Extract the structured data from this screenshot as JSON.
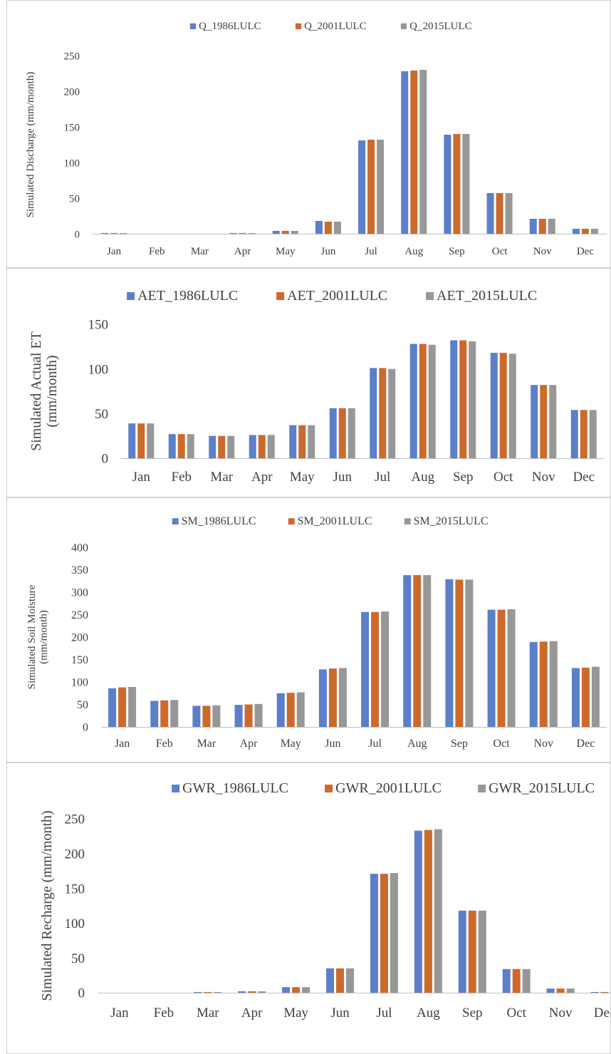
{
  "colors": {
    "series1": "#5b7fc9",
    "series2": "#cc6a2c",
    "series3": "#979797",
    "axis": "#bfbfbf"
  },
  "chart_data": [
    {
      "type": "bar",
      "categories": [
        "Jan",
        "Feb",
        "Mar",
        "Apr",
        "May",
        "Jun",
        "Jul",
        "Aug",
        "Sep",
        "Oct",
        "Nov",
        "Dec"
      ],
      "series": [
        {
          "name": "Q_1986LULC",
          "values": [
            1,
            0,
            0,
            1,
            4,
            18,
            131,
            228,
            139,
            57,
            21,
            7
          ]
        },
        {
          "name": "Q_2001LULC",
          "values": [
            1,
            0,
            0,
            1,
            4,
            17,
            132,
            229,
            140,
            57,
            21,
            7
          ]
        },
        {
          "name": "Q_2015LULC",
          "values": [
            1,
            0,
            0,
            1,
            4,
            17,
            132,
            230,
            140,
            57,
            21,
            7
          ]
        }
      ],
      "ylabel": "Simulated Discharge (mm/month)",
      "ylabel_lines": [
        "Simulated Discharge (mm/month)"
      ],
      "yticks": [
        "0",
        "50",
        "100",
        "150",
        "200",
        "250"
      ],
      "ylim": [
        0,
        250
      ],
      "legend": "top-center",
      "grid": false
    },
    {
      "type": "bar",
      "categories": [
        "Jan",
        "Feb",
        "Mar",
        "Apr",
        "May",
        "Jun",
        "Jul",
        "Aug",
        "Sep",
        "Oct",
        "Nov",
        "Dec"
      ],
      "series": [
        {
          "name": "AET_1986LULC",
          "values": [
            39,
            27,
            25,
            26,
            37,
            56,
            101,
            128,
            132,
            118,
            82,
            54
          ]
        },
        {
          "name": "AET_2001LULC",
          "values": [
            39,
            27,
            25,
            26,
            37,
            56,
            101,
            128,
            132,
            118,
            82,
            54
          ]
        },
        {
          "name": "AET_2015LULC",
          "values": [
            39,
            27,
            25,
            26,
            37,
            56,
            100,
            127,
            131,
            117,
            82,
            54
          ]
        }
      ],
      "ylabel": "Simulated Actual ET (mm/month)",
      "ylabel_lines": [
        "Simulated Actual ET",
        "(mm/month)"
      ],
      "yticks": [
        "0",
        "50",
        "100",
        "150"
      ],
      "ylim": [
        0,
        150
      ],
      "legend": "top-center",
      "grid": false
    },
    {
      "type": "bar",
      "categories": [
        "Jan",
        "Feb",
        "Mar",
        "Apr",
        "May",
        "Jun",
        "Jul",
        "Aug",
        "Sep",
        "Oct",
        "Nov",
        "Dec"
      ],
      "series": [
        {
          "name": "SM_1986LULC",
          "values": [
            86,
            58,
            47,
            49,
            75,
            128,
            256,
            338,
            329,
            261,
            189,
            131
          ]
        },
        {
          "name": "SM_2001LULC",
          "values": [
            88,
            59,
            47,
            50,
            76,
            130,
            256,
            338,
            328,
            261,
            190,
            132
          ]
        },
        {
          "name": "SM_2015LULC",
          "values": [
            89,
            60,
            48,
            51,
            77,
            131,
            257,
            338,
            328,
            262,
            191,
            134
          ]
        }
      ],
      "ylabel": "Simulated Soil Moisture (mm/month)",
      "ylabel_lines": [
        "Simulated Soil Moisture",
        "(mm/month)"
      ],
      "yticks": [
        "0",
        "50",
        "100",
        "150",
        "200",
        "250",
        "300",
        "350",
        "400"
      ],
      "ylim": [
        0,
        400
      ],
      "legend": "top-center",
      "grid": false
    },
    {
      "type": "bar",
      "categories": [
        "Jan",
        "Feb",
        "Mar",
        "Apr",
        "May",
        "Jun",
        "Jul",
        "Aug",
        "Sep",
        "Oct",
        "Nov",
        "Dec"
      ],
      "series": [
        {
          "name": "GWR_1986LULC",
          "values": [
            0,
            0,
            1,
            2,
            8,
            35,
            171,
            233,
            118,
            34,
            6,
            1
          ]
        },
        {
          "name": "GWR_2001LULC",
          "values": [
            0,
            0,
            1,
            2,
            8,
            35,
            171,
            234,
            118,
            34,
            6,
            1
          ]
        },
        {
          "name": "GWR_2015LULC",
          "values": [
            0,
            0,
            1,
            2,
            8,
            35,
            172,
            235,
            118,
            34,
            6,
            1
          ]
        }
      ],
      "ylabel": "Simulated Recharge (mm/month)",
      "ylabel_lines": [
        "Simulated Recharge (mm/month)"
      ],
      "yticks": [
        "0",
        "50",
        "100",
        "150",
        "200",
        "250"
      ],
      "ylim": [
        0,
        250
      ],
      "legend": "top-center",
      "grid": false
    }
  ]
}
